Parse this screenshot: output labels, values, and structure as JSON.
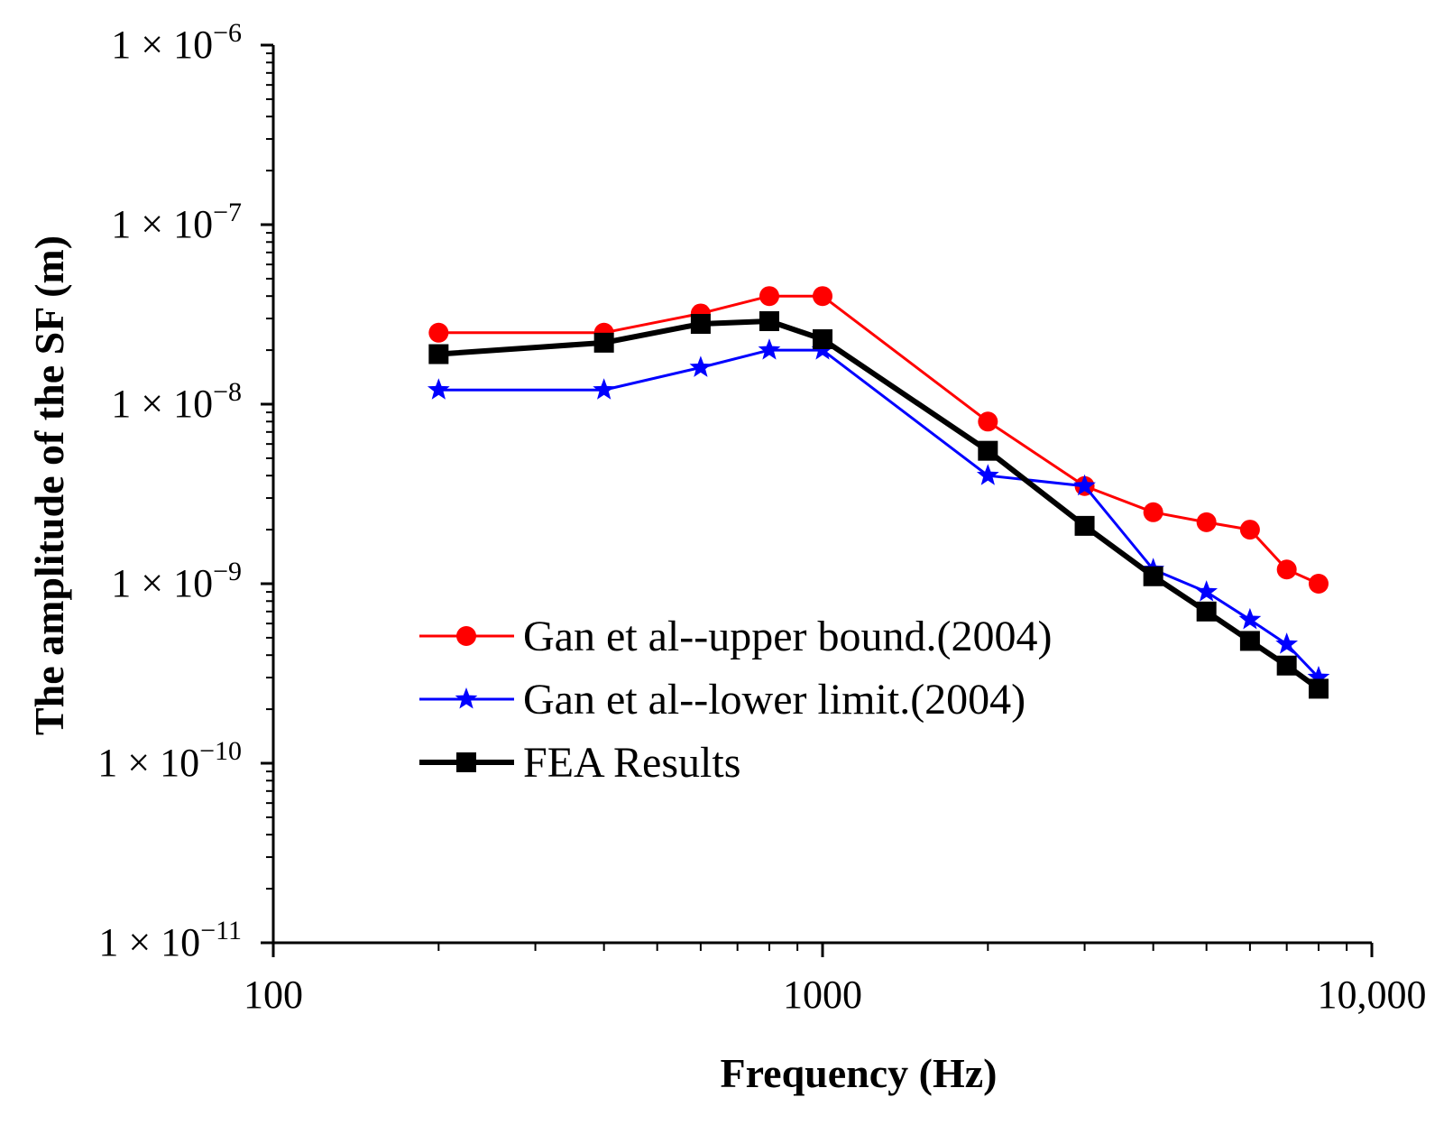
{
  "chart_data": {
    "type": "line",
    "title": "",
    "xlabel": "Frequency (Hz)",
    "ylabel": "The amplitude of the SF (m)",
    "x_scale": "log",
    "y_scale": "log",
    "xlim": [
      100,
      10000
    ],
    "ylim": [
      1e-11,
      1e-06
    ],
    "x_ticks": [
      {
        "value": 100,
        "label": "100"
      },
      {
        "value": 1000,
        "label": "1000"
      },
      {
        "value": 10000,
        "label": "10,000"
      }
    ],
    "y_ticks": [
      {
        "value": 1e-06,
        "mant": "1 × 10",
        "exp": "−6"
      },
      {
        "value": 1e-07,
        "mant": "1 × 10",
        "exp": "−7"
      },
      {
        "value": 1e-08,
        "mant": "1 × 10",
        "exp": "−8"
      },
      {
        "value": 1e-09,
        "mant": "1 × 10",
        "exp": "−9"
      },
      {
        "value": 1e-10,
        "mant": "1 × 10",
        "exp": "−10"
      },
      {
        "value": 1e-11,
        "mant": "1 × 10",
        "exp": "−11"
      }
    ],
    "legend_position": "lower-left",
    "series": [
      {
        "name": "Gan et al--upper bound.(2004)",
        "color": "#ff0000",
        "marker": "circle",
        "x": [
          200,
          400,
          600,
          800,
          1000,
          2000,
          3000,
          4000,
          5000,
          6000,
          7000,
          8000
        ],
        "y": [
          2.5e-08,
          2.5e-08,
          3.2e-08,
          4e-08,
          4e-08,
          8e-09,
          3.5e-09,
          2.5e-09,
          2.2e-09,
          2e-09,
          1.2e-09,
          1e-09
        ]
      },
      {
        "name": "Gan et al--lower limit.(2004)",
        "color": "#0000ff",
        "marker": "star",
        "x": [
          200,
          400,
          600,
          800,
          1000,
          2000,
          3000,
          4000,
          5000,
          6000,
          7000,
          8000
        ],
        "y": [
          1.2e-08,
          1.2e-08,
          1.6e-08,
          2e-08,
          2e-08,
          4e-09,
          3.5e-09,
          1.2e-09,
          9e-10,
          6.3e-10,
          4.6e-10,
          3e-10
        ]
      },
      {
        "name": "FEA Results",
        "color": "#000000",
        "marker": "square",
        "x": [
          200,
          400,
          600,
          800,
          1000,
          2000,
          3000,
          4000,
          5000,
          6000,
          7000,
          8000
        ],
        "y": [
          1.9e-08,
          2.2e-08,
          2.8e-08,
          2.9e-08,
          2.3e-08,
          5.5e-09,
          2.1e-09,
          1.1e-09,
          7e-10,
          4.8e-10,
          3.5e-10,
          2.6e-10
        ]
      }
    ]
  }
}
